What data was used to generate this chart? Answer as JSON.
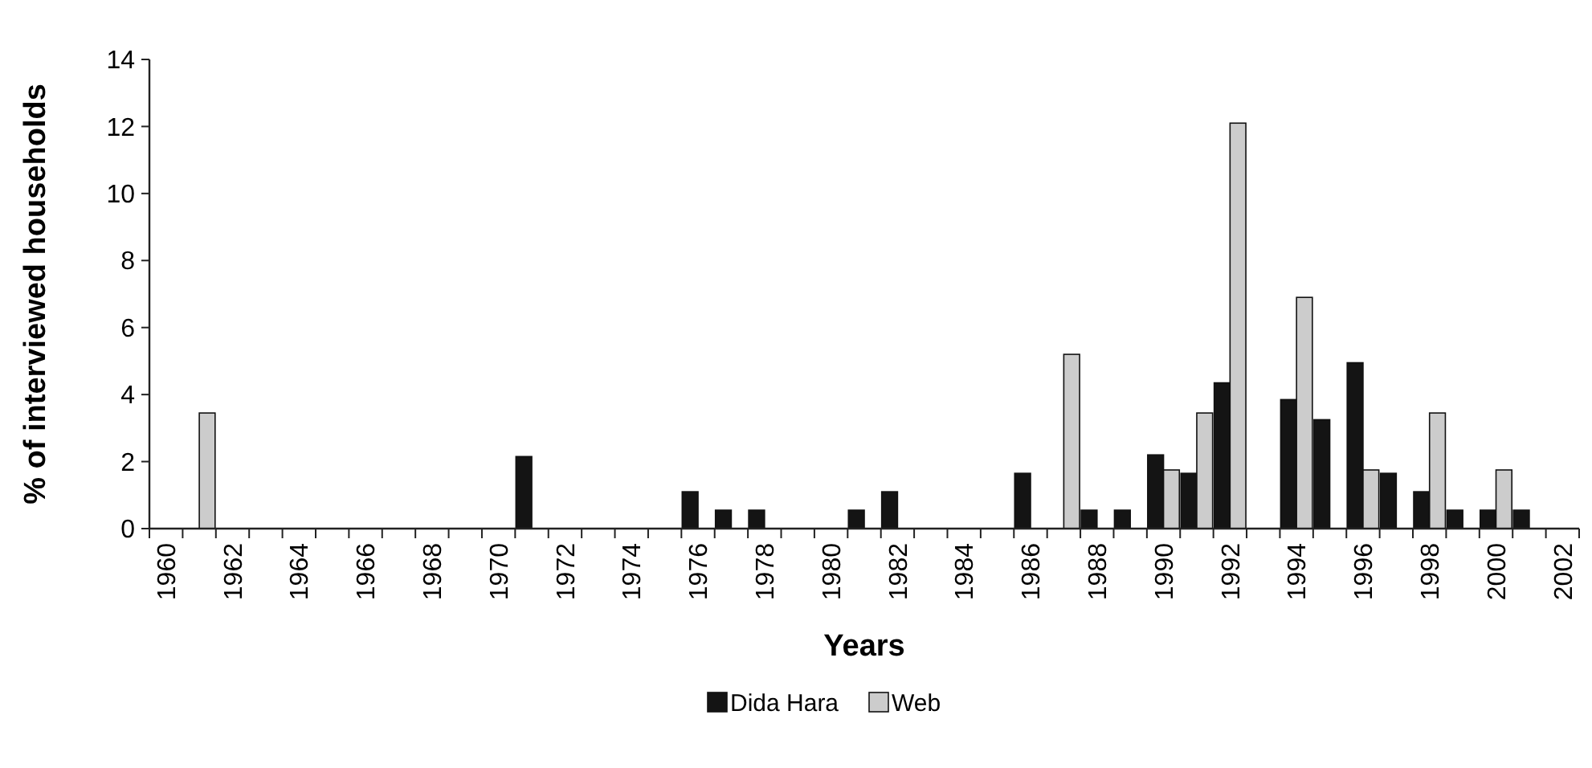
{
  "chart_data": {
    "type": "bar",
    "xlabel": "Years",
    "ylabel": "% of interviewed households",
    "categories": [
      "1960",
      null,
      "1962",
      null,
      "1964",
      null,
      "1966",
      null,
      "1968",
      null,
      "1970",
      null,
      "1972",
      null,
      "1974",
      null,
      "1976",
      null,
      "1978",
      null,
      "1980",
      null,
      "1982",
      null,
      "1984",
      null,
      "1986",
      null,
      "1988",
      null,
      "1990",
      null,
      "1992",
      null,
      "1994",
      null,
      "1996",
      null,
      "1998",
      null,
      "2000",
      null,
      "2002"
    ],
    "series": [
      {
        "name": "Dida Hara",
        "color": "#141414",
        "values": [
          0,
          0,
          0,
          0,
          0,
          0,
          0,
          0,
          0,
          0,
          0,
          2.15,
          0,
          0,
          0,
          0,
          1.1,
          0.55,
          0.55,
          0,
          0,
          0.55,
          1.1,
          0,
          0,
          0,
          1.65,
          0,
          0.55,
          0.55,
          2.2,
          1.65,
          4.35,
          0,
          3.85,
          3.25,
          4.95,
          1.65,
          1.1,
          0.55,
          0.55,
          0.55,
          0
        ]
      },
      {
        "name": "Web",
        "color": "#cccccc",
        "values": [
          0,
          3.45,
          0,
          0,
          0,
          0,
          0,
          0,
          0,
          0,
          0,
          0,
          0,
          0,
          0,
          0,
          0,
          0,
          0,
          0,
          0,
          0,
          0,
          0,
          0,
          0,
          0,
          5.2,
          0,
          0,
          1.75,
          3.45,
          12.1,
          0,
          6.9,
          0,
          1.75,
          0,
          3.45,
          0,
          1.75,
          0,
          0
        ]
      }
    ],
    "ylim": [
      0,
      14
    ],
    "yticks": [
      0,
      2,
      4,
      6,
      8,
      10,
      12,
      14
    ],
    "grid": false,
    "legend": "bottom"
  }
}
